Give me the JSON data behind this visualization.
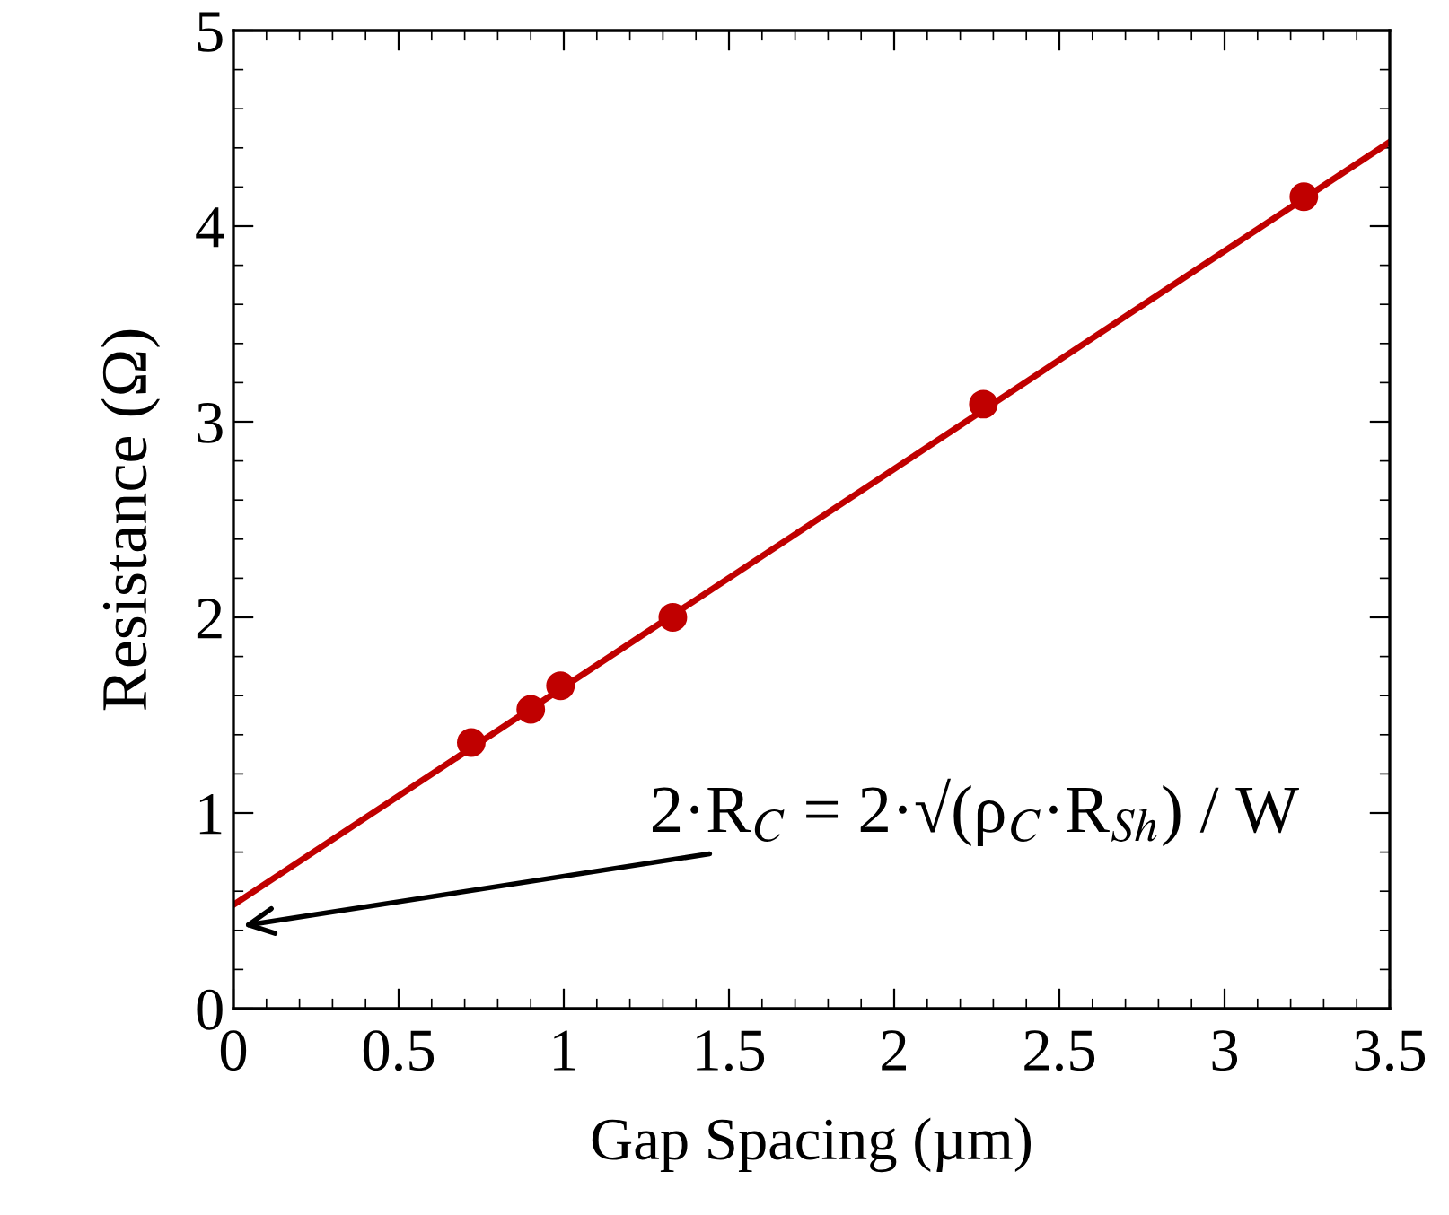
{
  "chart_data": {
    "type": "scatter",
    "xlabel": "Gap Spacing (µm)",
    "ylabel": "Resistance (Ω)",
    "series": [
      {
        "color": "#c00000",
        "x": [
          0.72,
          0.9,
          0.99,
          1.33,
          2.27,
          3.24
        ],
        "values": [
          1.36,
          1.53,
          1.65,
          2.0,
          3.09,
          4.15
        ],
        "marker": "circle"
      },
      {
        "type": "line",
        "color": "#c00000",
        "x": [
          0,
          3.5
        ],
        "values": [
          0.53,
          4.43
        ],
        "marker": "none",
        "line_style": "solid"
      }
    ],
    "xlim": [
      0,
      3.5
    ],
    "xticks": [
      0,
      0.5,
      1,
      1.5,
      2,
      2.5,
      3,
      3.5
    ],
    "ylim": [
      0,
      5
    ],
    "yticks": [
      0,
      1,
      2,
      3,
      4,
      5
    ],
    "grid": false,
    "legend": false,
    "annotations": [
      "2·R$_{C}$ = 2·√(ρ$_{C}$·R$_{Sh}$) / W"
    ]
  }
}
